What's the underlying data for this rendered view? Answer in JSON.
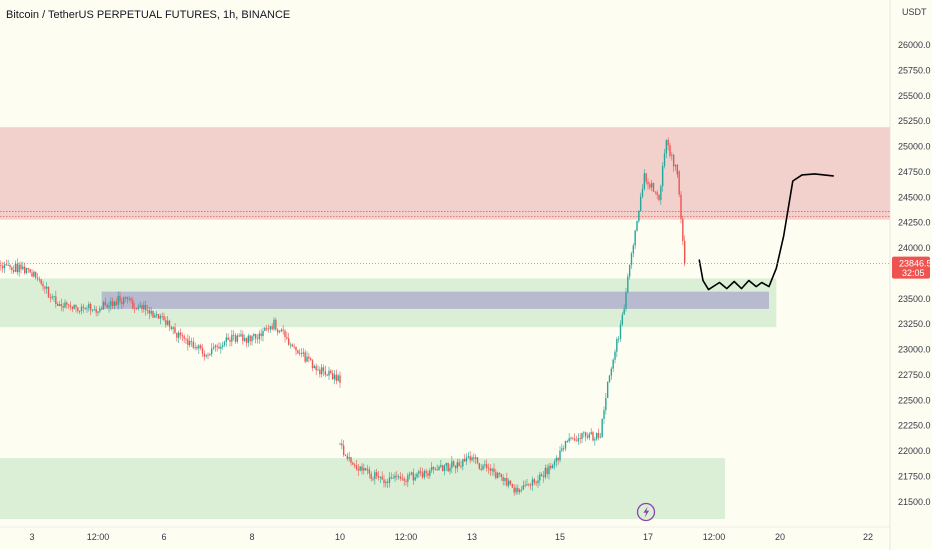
{
  "chart_data": {
    "type": "candlestick",
    "title": "Bitcoin / TetherUS PERPETUAL FUTURES, 1h, BINANCE",
    "currency": "USDT",
    "y_ticks": [
      21500,
      21750,
      22000,
      22250,
      22500,
      22750,
      23000,
      23250,
      23500,
      23750,
      24000,
      24250,
      24500,
      24750,
      25000,
      25250,
      25500,
      25750,
      26000
    ],
    "y_tick_labels": [
      "21500.0",
      "21750.0",
      "22000.0",
      "22250.0",
      "22500.0",
      "22750.0",
      "23000.0",
      "23250.0",
      "23500.0",
      "23750.0",
      "24000.0",
      "24250.0",
      "24500.0",
      "24750.0",
      "25000.0",
      "25250.0",
      "25500.0",
      "25750.0",
      "26000.0"
    ],
    "ylim": [
      21370,
      26290
    ],
    "x_tick_labels": [
      "3",
      "12:00",
      "6",
      "8",
      "10",
      "12:00",
      "13",
      "15",
      "17",
      "12:00",
      "20",
      "22"
    ],
    "x_tick_positions_hours": [
      0,
      36,
      72,
      120,
      168,
      204,
      240,
      288,
      336,
      372,
      408,
      456
    ],
    "last_price": 23846.5,
    "last_price_label": "23846.5",
    "countdown": "32:05",
    "price_segments": [
      {
        "hours": [
          -18,
          0,
          12,
          24,
          36,
          48,
          60,
          72,
          84,
          96,
          108,
          120,
          132,
          144,
          156,
          168
        ],
        "prices": [
          23850,
          23760,
          23480,
          23420,
          23400,
          23500,
          23420,
          23300,
          23060,
          22950,
          23120,
          23100,
          23250,
          23000,
          22800,
          22700
        ]
      },
      {
        "hours": [
          168,
          170,
          180,
          192,
          204,
          216,
          228,
          240,
          252,
          264,
          276,
          286,
          290,
          300,
          310,
          314,
          322,
          330,
          334,
          338,
          342,
          346,
          352
        ],
        "prices": [
          22080,
          21950,
          21820,
          21700,
          21730,
          21800,
          21850,
          21920,
          21770,
          21620,
          21720,
          21900,
          22050,
          22170,
          22130,
          22700,
          23300,
          24300,
          24700,
          24620,
          24500,
          25030,
          24750
        ]
      },
      {
        "hours": [
          352,
          356
        ],
        "prices": [
          24750,
          23846.5
        ]
      }
    ],
    "zones": [
      {
        "kind": "resistance",
        "from_hours": -30,
        "to_hours": 540,
        "high": 25190,
        "low": 24280,
        "color": "#f0c8c4"
      },
      {
        "kind": "support",
        "from_hours": -30,
        "to_hours": 406,
        "high": 23700,
        "low": 23220,
        "color": "#d4ecd0"
      },
      {
        "kind": "imbalance",
        "from_hours": 38,
        "to_hours": 402,
        "high": 23570,
        "low": 23400,
        "color": "#b6b6d0"
      },
      {
        "kind": "support",
        "from_hours": -30,
        "to_hours": 378,
        "high": 21930,
        "low": 21330,
        "color": "#d4ecd0"
      }
    ],
    "resistance_lines": [
      24360,
      24310
    ],
    "forecast_path": {
      "hours": [
        364,
        366,
        369,
        375,
        379,
        383,
        387,
        391,
        395,
        398,
        402,
        406,
        410,
        415,
        420,
        427,
        437
      ],
      "prices": [
        23880,
        23680,
        23590,
        23660,
        23600,
        23670,
        23600,
        23680,
        23620,
        23660,
        23620,
        23800,
        24120,
        24660,
        24720,
        24730,
        24710
      ]
    },
    "colors": {
      "up": "#26a69a",
      "down": "#ef5350",
      "last_price": "#ef5350",
      "forecast": "#000000",
      "lightning": "#8e44ad"
    },
    "grid": false,
    "icons": [
      "lightning-icon"
    ]
  }
}
